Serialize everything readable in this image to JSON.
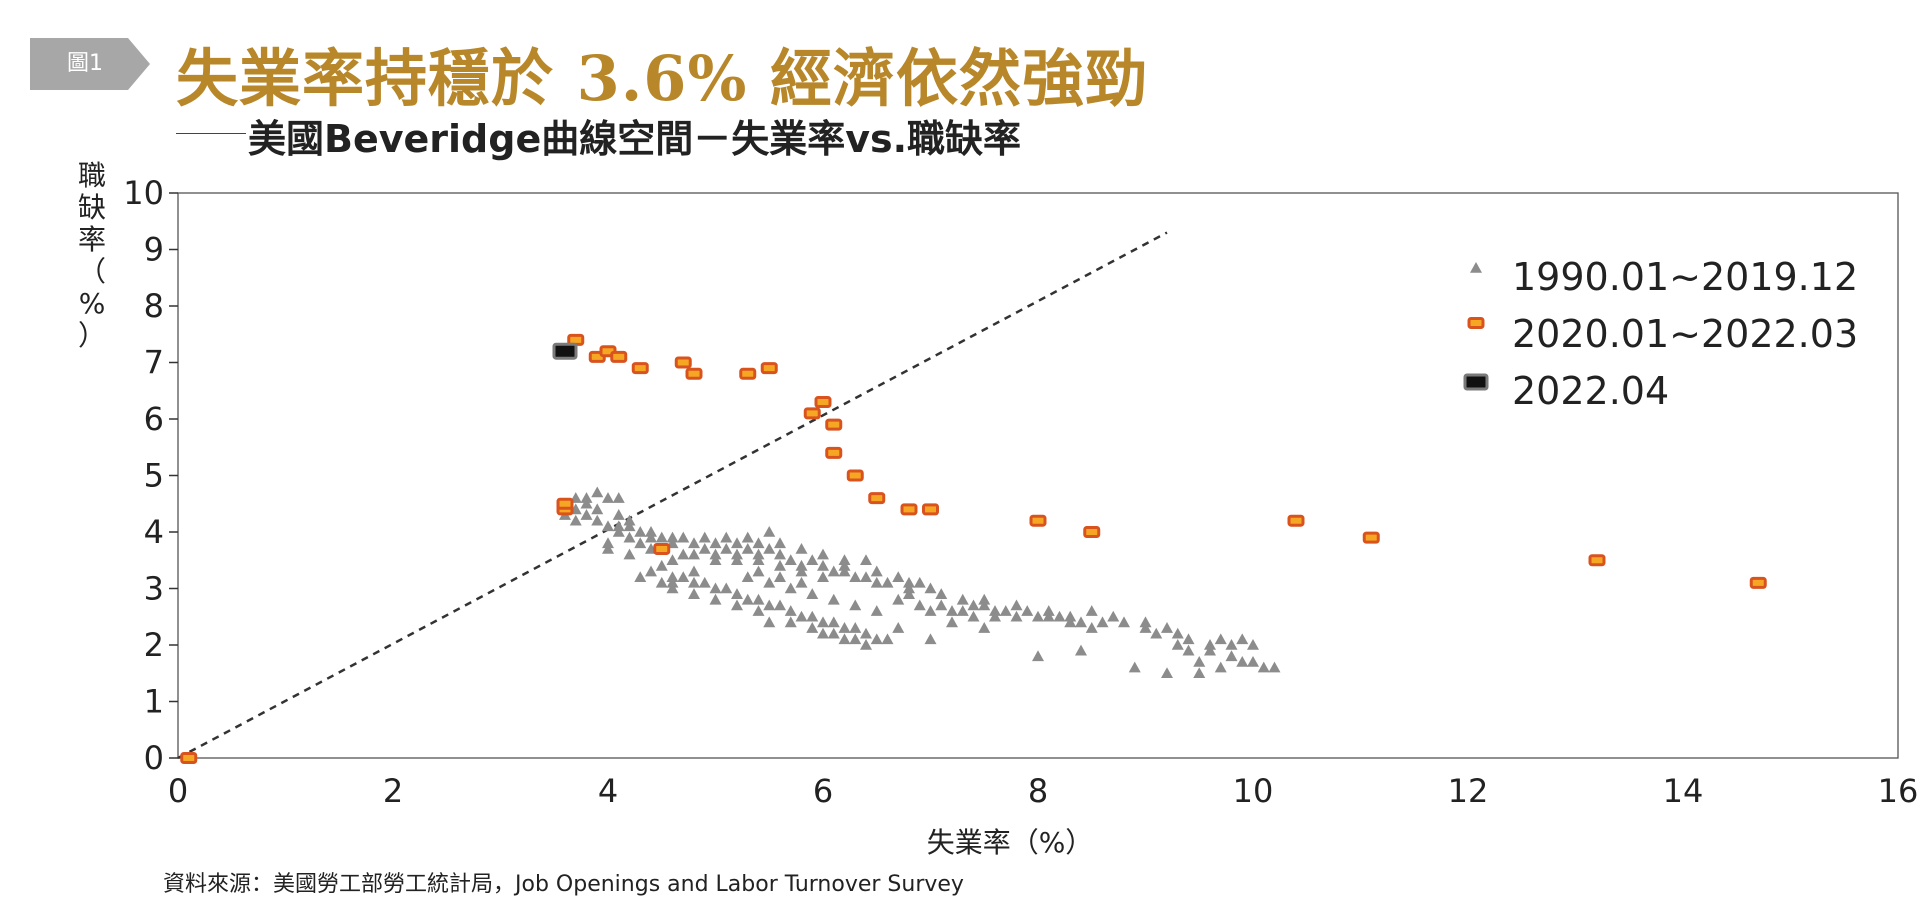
{
  "figure_label": "圖1",
  "title": "失業率持穩於 3.6% 經濟依然強勁",
  "subtitle": "美國Beveridge曲線空間－失業率vs.職缺率",
  "source": "資料來源：美國勞工部勞工統計局，Job Openings and Labor Turnover Survey",
  "colors": {
    "title": "#b8872a",
    "tag": "#a7a7a7",
    "historical": "#8c8c8c",
    "recent_fill": "#f5a623",
    "recent_stroke": "#d9531e",
    "latest_fill": "#111111",
    "latest_stroke": "#7a7a7a"
  },
  "chart_data": {
    "type": "scatter",
    "xlabel": "失業率（%）",
    "ylabel": "職缺率（%）",
    "xlim": [
      0,
      16
    ],
    "ylim": [
      0,
      10
    ],
    "xticks": [
      "0",
      "2",
      "4",
      "6",
      "8",
      "10",
      "12",
      "14",
      "16"
    ],
    "yticks": [
      "0",
      "1",
      "2",
      "3",
      "4",
      "5",
      "6",
      "7",
      "8",
      "9",
      "10"
    ],
    "grid": false,
    "legend_position": "top-right",
    "reference_line": {
      "style": "dashed",
      "from": [
        0,
        0
      ],
      "to": [
        9.2,
        9.3
      ]
    },
    "series": [
      {
        "name": "1990.01~2019.12",
        "marker": "triangle",
        "points": [
          [
            3.6,
            4.5
          ],
          [
            3.7,
            4.6
          ],
          [
            3.8,
            4.6
          ],
          [
            3.9,
            4.7
          ],
          [
            4.0,
            4.6
          ],
          [
            4.1,
            4.6
          ],
          [
            3.7,
            4.4
          ],
          [
            3.8,
            4.3
          ],
          [
            3.9,
            4.2
          ],
          [
            4.0,
            4.1
          ],
          [
            3.6,
            4.3
          ],
          [
            3.7,
            4.2
          ],
          [
            3.8,
            4.5
          ],
          [
            3.9,
            4.4
          ],
          [
            4.1,
            4.3
          ],
          [
            4.1,
            4.1
          ],
          [
            4.2,
            4.1
          ],
          [
            4.3,
            4.0
          ],
          [
            4.4,
            4.0
          ],
          [
            4.5,
            3.9
          ],
          [
            4.2,
            3.9
          ],
          [
            4.3,
            3.8
          ],
          [
            4.4,
            3.7
          ],
          [
            4.0,
            3.8
          ],
          [
            4.0,
            3.7
          ],
          [
            4.1,
            4.0
          ],
          [
            4.2,
            4.2
          ],
          [
            4.6,
            3.9
          ],
          [
            4.7,
            3.9
          ],
          [
            4.8,
            3.8
          ],
          [
            4.9,
            3.9
          ],
          [
            5.0,
            3.8
          ],
          [
            5.1,
            3.7
          ],
          [
            5.2,
            3.8
          ],
          [
            5.3,
            3.7
          ],
          [
            5.4,
            3.8
          ],
          [
            5.5,
            3.7
          ],
          [
            5.6,
            3.6
          ],
          [
            5.7,
            3.5
          ],
          [
            5.8,
            3.4
          ],
          [
            5.9,
            3.5
          ],
          [
            6.0,
            3.4
          ],
          [
            6.1,
            3.3
          ],
          [
            6.2,
            3.3
          ],
          [
            6.3,
            3.2
          ],
          [
            6.4,
            3.2
          ],
          [
            6.5,
            3.1
          ],
          [
            6.6,
            3.1
          ],
          [
            6.7,
            3.2
          ],
          [
            6.8,
            3.0
          ],
          [
            4.5,
            3.4
          ],
          [
            4.6,
            3.2
          ],
          [
            4.7,
            3.2
          ],
          [
            4.8,
            3.1
          ],
          [
            4.9,
            3.1
          ],
          [
            5.0,
            3.0
          ],
          [
            5.1,
            3.0
          ],
          [
            5.2,
            2.9
          ],
          [
            5.3,
            2.8
          ],
          [
            5.4,
            2.8
          ],
          [
            5.5,
            2.7
          ],
          [
            5.6,
            2.7
          ],
          [
            5.7,
            2.6
          ],
          [
            5.8,
            2.5
          ],
          [
            5.9,
            2.5
          ],
          [
            6.0,
            2.4
          ],
          [
            6.1,
            2.4
          ],
          [
            6.2,
            2.3
          ],
          [
            6.3,
            2.3
          ],
          [
            6.4,
            2.2
          ],
          [
            5.0,
            3.6
          ],
          [
            5.2,
            3.5
          ],
          [
            5.4,
            3.5
          ],
          [
            5.6,
            3.4
          ],
          [
            5.8,
            3.3
          ],
          [
            6.0,
            3.2
          ],
          [
            6.2,
            3.4
          ],
          [
            6.4,
            3.5
          ],
          [
            5.5,
            4.0
          ],
          [
            5.3,
            3.9
          ],
          [
            4.8,
            3.3
          ],
          [
            4.6,
            3.1
          ],
          [
            4.5,
            3.1
          ],
          [
            5.3,
            3.2
          ],
          [
            5.5,
            3.1
          ],
          [
            5.7,
            3.0
          ],
          [
            5.9,
            2.9
          ],
          [
            6.1,
            2.8
          ],
          [
            6.3,
            2.7
          ],
          [
            6.5,
            2.6
          ],
          [
            6.7,
            2.8
          ],
          [
            6.9,
            2.7
          ],
          [
            7.0,
            2.6
          ],
          [
            7.2,
            2.6
          ],
          [
            7.4,
            2.7
          ],
          [
            7.6,
            2.6
          ],
          [
            7.8,
            2.5
          ],
          [
            8.0,
            2.5
          ],
          [
            8.2,
            2.5
          ],
          [
            8.4,
            2.4
          ],
          [
            8.6,
            2.4
          ],
          [
            8.8,
            2.4
          ],
          [
            9.0,
            2.3
          ],
          [
            9.2,
            2.3
          ],
          [
            9.4,
            2.1
          ],
          [
            9.6,
            2.0
          ],
          [
            9.8,
            2.0
          ],
          [
            10.0,
            2.0
          ],
          [
            10.1,
            1.6
          ],
          [
            9.9,
            1.7
          ],
          [
            9.7,
            1.6
          ],
          [
            9.5,
            1.7
          ],
          [
            9.3,
            2.0
          ],
          [
            9.1,
            2.2
          ],
          [
            7.1,
            2.7
          ],
          [
            7.3,
            2.8
          ],
          [
            7.5,
            2.8
          ],
          [
            7.7,
            2.6
          ],
          [
            7.9,
            2.6
          ],
          [
            8.1,
            2.6
          ],
          [
            8.3,
            2.5
          ],
          [
            8.5,
            2.6
          ],
          [
            7.0,
            2.1
          ],
          [
            7.5,
            2.3
          ],
          [
            8.0,
            1.8
          ],
          [
            8.4,
            1.9
          ],
          [
            8.9,
            1.6
          ],
          [
            9.2,
            1.5
          ],
          [
            9.5,
            1.5
          ],
          [
            9.8,
            1.8
          ],
          [
            6.6,
            2.1
          ],
          [
            6.4,
            2.0
          ],
          [
            6.2,
            2.1
          ],
          [
            6.0,
            2.2
          ],
          [
            6.9,
            3.1
          ],
          [
            7.0,
            3.0
          ],
          [
            6.8,
            2.9
          ],
          [
            7.2,
            2.4
          ],
          [
            7.4,
            2.5
          ],
          [
            7.6,
            2.5
          ],
          [
            4.3,
            3.2
          ],
          [
            4.4,
            3.3
          ],
          [
            4.6,
            3.5
          ],
          [
            4.7,
            3.6
          ],
          [
            4.9,
            3.7
          ],
          [
            5.1,
            3.9
          ],
          [
            5.2,
            3.6
          ],
          [
            5.4,
            3.3
          ],
          [
            5.6,
            3.2
          ],
          [
            5.8,
            3.1
          ],
          [
            4.2,
            3.6
          ],
          [
            4.4,
            3.9
          ],
          [
            4.6,
            3.8
          ],
          [
            4.8,
            3.6
          ],
          [
            5.0,
            3.5
          ],
          [
            5.4,
            3.6
          ],
          [
            5.6,
            3.8
          ],
          [
            5.8,
            3.7
          ],
          [
            6.0,
            3.6
          ],
          [
            6.2,
            3.5
          ],
          [
            6.5,
            3.3
          ],
          [
            6.8,
            3.1
          ],
          [
            7.1,
            2.9
          ],
          [
            7.3,
            2.6
          ],
          [
            7.5,
            2.7
          ],
          [
            7.8,
            2.7
          ],
          [
            8.1,
            2.5
          ],
          [
            8.3,
            2.4
          ],
          [
            8.5,
            2.3
          ],
          [
            8.7,
            2.5
          ],
          [
            9.0,
            2.4
          ],
          [
            9.3,
            2.2
          ],
          [
            9.6,
            1.9
          ],
          [
            9.9,
            2.1
          ],
          [
            10.0,
            1.7
          ],
          [
            10.2,
            1.6
          ],
          [
            9.7,
            2.1
          ],
          [
            9.4,
            1.9
          ],
          [
            5.5,
            2.4
          ],
          [
            5.7,
            2.4
          ],
          [
            5.9,
            2.3
          ],
          [
            6.1,
            2.2
          ],
          [
            6.3,
            2.1
          ],
          [
            6.5,
            2.1
          ],
          [
            6.7,
            2.3
          ],
          [
            5.4,
            2.6
          ],
          [
            5.2,
            2.7
          ],
          [
            5.0,
            2.8
          ],
          [
            4.8,
            2.9
          ],
          [
            4.6,
            3.0
          ]
        ]
      },
      {
        "name": "2020.01~2022.03",
        "marker": "square",
        "points": [
          [
            3.6,
            4.4
          ],
          [
            3.6,
            4.5
          ],
          [
            3.7,
            7.4
          ],
          [
            3.9,
            7.1
          ],
          [
            4.0,
            7.2
          ],
          [
            4.1,
            7.1
          ],
          [
            4.3,
            6.9
          ],
          [
            4.7,
            7.0
          ],
          [
            4.8,
            6.8
          ],
          [
            5.3,
            6.8
          ],
          [
            5.5,
            6.9
          ],
          [
            5.9,
            6.1
          ],
          [
            6.0,
            6.3
          ],
          [
            6.1,
            5.9
          ],
          [
            6.1,
            5.4
          ],
          [
            6.3,
            5.0
          ],
          [
            6.5,
            4.6
          ],
          [
            6.8,
            4.4
          ],
          [
            7.0,
            4.4
          ],
          [
            8.0,
            4.2
          ],
          [
            8.5,
            4.0
          ],
          [
            10.4,
            4.2
          ],
          [
            11.1,
            3.9
          ],
          [
            13.2,
            3.5
          ],
          [
            14.7,
            3.1
          ],
          [
            4.5,
            3.7
          ],
          [
            0.1,
            0.0
          ]
        ]
      },
      {
        "name": "2022.04",
        "marker": "square",
        "points": [
          [
            3.6,
            7.2
          ]
        ]
      }
    ]
  }
}
